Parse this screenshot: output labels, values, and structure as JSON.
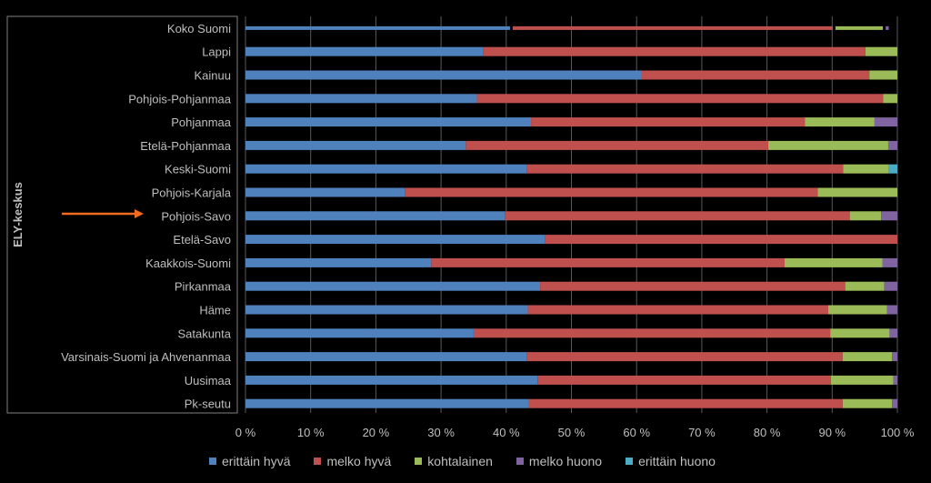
{
  "chart_data": {
    "type": "bar",
    "orientation": "horizontal",
    "stacked": "percent",
    "ylabel": "ELY-keskus",
    "categories": [
      "Koko Suomi",
      "Lappi",
      "Kainuu",
      "Pohjois-Pohjanmaa",
      "Pohjanmaa",
      "Etelä-Pohjanmaa",
      "Keski-Suomi",
      "Pohjois-Karjala",
      "Pohjois-Savo",
      "Etelä-Savo",
      "Kaakkois-Suomi",
      "Pirkanmaa",
      "Häme",
      "Satakunta",
      "Varsinais-Suomi ja Ahvenanmaa",
      "Uusimaa",
      "Pk-seutu"
    ],
    "highlighted_category": "Pohjois-Savo",
    "x_ticks": [
      "0 %",
      "10 %",
      "20 %",
      "30 %",
      "40 %",
      "50 %",
      "60 %",
      "70 %",
      "80 %",
      "90 %",
      "100 %"
    ],
    "xlim": [
      0,
      100
    ],
    "grid": true,
    "legend_position": "bottom",
    "series": [
      {
        "name": "erittäin hyvä",
        "color": "#4f81bd",
        "values": [
          41,
          36.5,
          60.8,
          35.5,
          43.8,
          33.8,
          43.2,
          24.5,
          39.8,
          46,
          28.5,
          45.2,
          43.3,
          35,
          43.2,
          44.8,
          43.5
        ]
      },
      {
        "name": "melko hyvä",
        "color": "#c0504d",
        "values": [
          49.5,
          58.6,
          34.9,
          62.3,
          42,
          46.4,
          48.5,
          63.3,
          52.9,
          54,
          54.2,
          46.8,
          46.1,
          54.7,
          48.4,
          45,
          48.1
        ]
      },
      {
        "name": "kohtalainen",
        "color": "#9bbb59",
        "values": [
          7.7,
          4.9,
          4.3,
          2.2,
          10.7,
          18.4,
          7,
          12.2,
          4.8,
          0,
          15,
          6,
          9,
          9.1,
          7.6,
          9.6,
          7.6
        ]
      },
      {
        "name": "melko huono",
        "color": "#8064a2",
        "values": [
          0.9,
          0,
          0,
          0,
          3.5,
          1.4,
          0,
          0,
          2.5,
          0,
          2.3,
          2,
          1.6,
          1.2,
          0.8,
          0.6,
          0.8
        ]
      },
      {
        "name": "erittäin huono",
        "color": "#4bacc6",
        "values": [
          0,
          0,
          0,
          0,
          0,
          0,
          1.3,
          0,
          0,
          0,
          0,
          0,
          0,
          0,
          0,
          0,
          0
        ]
      }
    ]
  }
}
